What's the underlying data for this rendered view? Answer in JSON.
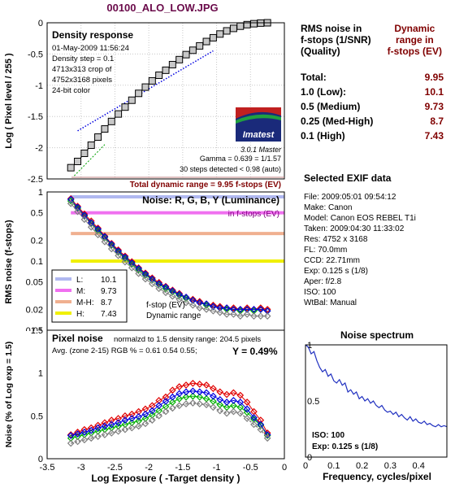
{
  "header": {
    "title": "00100_ALO_LOW.JPG"
  },
  "colors": {
    "lum": "#b0b8f0",
    "med": "#f070f0",
    "medhigh": "#f0b090",
    "high": "#f0f000",
    "red": "#e00000",
    "green": "#00b000",
    "blue": "#0000e0",
    "gray": "#808080",
    "dr_text": "#800000",
    "dr_line": "#c08080",
    "spectrum": "#2030c0"
  },
  "density": {
    "title": "Density response",
    "info": [
      "01-May-2009 11:56:24",
      "Density step = 0.1",
      "4713x313 crop of",
      "4752x3168 pixels",
      "24-bit color"
    ],
    "logo": "Imatest",
    "version": "3.0.1  Master",
    "gamma": "Gamma = 0.639 = 1/1.57",
    "steps": "30 steps detected < 0.98 (auto)",
    "total": "Total dynamic range = 9.95 f-stops (EV)"
  },
  "noise_fstops": {
    "title": "Noise: R, G, B, Y (Luminance)",
    "subtitle": "in f-stops (EV)",
    "legend": [
      {
        "label": "L:",
        "value": "10.1"
      },
      {
        "label": "M:",
        "value": "9.73"
      },
      {
        "label": "M-H:",
        "value": "8.7"
      },
      {
        "label": "H:",
        "value": "7.43"
      }
    ],
    "note1": "f-stop (EV)",
    "note2": "Dynamic range"
  },
  "pixel_noise": {
    "title": "Pixel noise",
    "norm": "normalzd to 1.5 density range: 204.5 pixels",
    "avg": "Avg. (zone 2-15) RGB % = 0.61  0.54  0.55;",
    "y": "Y = 0.49%",
    "xlabel": "Log Exposure ( -Target density )"
  },
  "rms_table": {
    "head_left": [
      "RMS noise in",
      "f-stops (1/SNR)",
      "(Quality)"
    ],
    "head_right": [
      "Dynamic",
      "range in",
      "f-stops (EV)"
    ],
    "rows": [
      {
        "label": "Total:",
        "value": "9.95"
      },
      {
        "label": "1.0   (Low):",
        "value": "10.1"
      },
      {
        "label": "0.5   (Medium)",
        "value": "9.73"
      },
      {
        "label": "0.25 (Med-High)",
        "value": "8.7"
      },
      {
        "label": "0.1   (High)",
        "value": "7.43"
      }
    ]
  },
  "exif": {
    "title": "Selected EXIF data",
    "lines": [
      "File:  2009:05:01 09:54:12",
      "Make:  Canon",
      "Model: Canon EOS REBEL T1i",
      "Taken: 2009:04:30 11:33:02",
      "Res:   4752 x 3168",
      "FL:    70.0mm",
      "CCD:   22.71mm",
      "Exp:   0.125 s  (1/8)",
      "Aper:  f/2.8",
      "ISO:   100",
      "WtBal: Manual"
    ]
  },
  "spectrum": {
    "title": "Noise spectrum",
    "iso": "ISO:   100",
    "exp": "Exp:   0.125 s  (1/8)",
    "xlabel": "Frequency, cycles/pixel"
  },
  "chart_data": [
    {
      "type": "scatter",
      "title": "Density response",
      "ylabel": "Log ( Pixel level / 255 )",
      "xlim": [
        -3.5,
        0
      ],
      "ylim": [
        -2.5,
        0
      ],
      "yticks": [
        0,
        -0.5,
        -1,
        -1.5,
        -2,
        -2.5
      ],
      "series": [
        {
          "x": [
            -3.15,
            -3.05,
            -2.95,
            -2.85,
            -2.75,
            -2.65,
            -2.55,
            -2.45,
            -2.35,
            -2.25,
            -2.15,
            -2.05,
            -1.95,
            -1.85,
            -1.75,
            -1.65,
            -1.55,
            -1.45,
            -1.35,
            -1.25,
            -1.15,
            -1.05,
            -0.95,
            -0.85,
            -0.75,
            -0.65,
            -0.55,
            -0.45,
            -0.35,
            -0.25
          ],
          "y": [
            -2.32,
            -2.22,
            -2.09,
            -1.96,
            -1.83,
            -1.7,
            -1.58,
            -1.46,
            -1.35,
            -1.24,
            -1.13,
            -1.03,
            -0.93,
            -0.84,
            -0.76,
            -0.67,
            -0.59,
            -0.51,
            -0.44,
            -0.37,
            -0.3,
            -0.24,
            -0.18,
            -0.13,
            -0.09,
            -0.055,
            -0.03,
            -0.015,
            -0.005,
            0
          ]
        }
      ]
    },
    {
      "type": "line",
      "title": "Noise: R, G, B, Y (Luminance)",
      "ylabel": "RMS noise (f-stops)",
      "yscale": "log",
      "ylim": [
        0.01,
        1
      ],
      "xlim": [
        -3.5,
        0
      ],
      "yticks": [
        1,
        0.5,
        0.2,
        0.1,
        0.05,
        0.02,
        0.01
      ],
      "thresholds": [
        1,
        0.5,
        0.25,
        0.1
      ],
      "x": [
        -3.15,
        -3.05,
        -2.95,
        -2.85,
        -2.75,
        -2.65,
        -2.55,
        -2.45,
        -2.35,
        -2.25,
        -2.15,
        -2.05,
        -1.95,
        -1.85,
        -1.75,
        -1.65,
        -1.55,
        -1.45,
        -1.35,
        -1.25,
        -1.15,
        -1.05,
        -0.95,
        -0.85,
        -0.75,
        -0.65,
        -0.55,
        -0.45,
        -0.35,
        -0.25
      ],
      "series": [
        {
          "name": "R",
          "values": [
            0.8,
            0.62,
            0.48,
            0.38,
            0.3,
            0.23,
            0.18,
            0.145,
            0.118,
            0.098,
            0.08,
            0.067,
            0.057,
            0.049,
            0.043,
            0.038,
            0.034,
            0.03,
            0.028,
            0.026,
            0.024,
            0.023,
            0.022,
            0.021,
            0.021,
            0.02,
            0.021,
            0.02,
            0.021,
            0.02
          ]
        },
        {
          "name": "G",
          "values": [
            0.74,
            0.58,
            0.45,
            0.35,
            0.28,
            0.22,
            0.17,
            0.136,
            0.11,
            0.091,
            0.075,
            0.063,
            0.054,
            0.046,
            0.04,
            0.036,
            0.032,
            0.029,
            0.027,
            0.025,
            0.023,
            0.022,
            0.021,
            0.02,
            0.02,
            0.019,
            0.02,
            0.019,
            0.02,
            0.019
          ]
        },
        {
          "name": "B",
          "values": [
            0.78,
            0.6,
            0.46,
            0.36,
            0.29,
            0.225,
            0.175,
            0.14,
            0.114,
            0.094,
            0.078,
            0.065,
            0.055,
            0.047,
            0.042,
            0.037,
            0.033,
            0.03,
            0.027,
            0.025,
            0.024,
            0.022,
            0.021,
            0.021,
            0.02,
            0.02,
            0.02,
            0.02,
            0.02,
            0.019
          ]
        },
        {
          "name": "Y",
          "values": [
            0.68,
            0.52,
            0.4,
            0.31,
            0.24,
            0.19,
            0.15,
            0.12,
            0.097,
            0.08,
            0.066,
            0.055,
            0.047,
            0.04,
            0.035,
            0.031,
            0.028,
            0.025,
            0.023,
            0.021,
            0.02,
            0.019,
            0.018,
            0.017,
            0.017,
            0.016,
            0.017,
            0.016,
            0.016,
            0.016
          ]
        }
      ]
    },
    {
      "type": "line",
      "title": "Pixel noise",
      "xlabel": "Log Exposure ( -Target density )",
      "ylabel": "Noise (% of Log exp = 1.5)",
      "xlim": [
        -3.5,
        0
      ],
      "ylim": [
        0,
        1.5
      ],
      "xticks": [
        -3.5,
        -3,
        -2.5,
        -2,
        -1.5,
        -1,
        -0.5,
        0
      ],
      "yticks": [
        0,
        0.5,
        1,
        1.5
      ],
      "x": [
        -3.15,
        -3.05,
        -2.95,
        -2.85,
        -2.75,
        -2.65,
        -2.55,
        -2.45,
        -2.35,
        -2.25,
        -2.15,
        -2.05,
        -1.95,
        -1.85,
        -1.75,
        -1.65,
        -1.55,
        -1.45,
        -1.35,
        -1.25,
        -1.15,
        -1.05,
        -0.95,
        -0.85,
        -0.75,
        -0.65,
        -0.55,
        -0.45,
        -0.35,
        -0.25
      ],
      "series": [
        {
          "name": "R",
          "values": [
            0.28,
            0.31,
            0.34,
            0.36,
            0.39,
            0.42,
            0.45,
            0.47,
            0.5,
            0.52,
            0.55,
            0.58,
            0.62,
            0.68,
            0.72,
            0.8,
            0.84,
            0.86,
            0.88,
            0.87,
            0.86,
            0.82,
            0.78,
            0.75,
            0.77,
            0.74,
            0.66,
            0.55,
            0.45,
            0.3
          ]
        },
        {
          "name": "G",
          "values": [
            0.24,
            0.26,
            0.28,
            0.3,
            0.32,
            0.34,
            0.36,
            0.38,
            0.4,
            0.42,
            0.44,
            0.47,
            0.51,
            0.56,
            0.61,
            0.66,
            0.7,
            0.72,
            0.73,
            0.72,
            0.7,
            0.67,
            0.63,
            0.6,
            0.62,
            0.6,
            0.54,
            0.46,
            0.39,
            0.27
          ]
        },
        {
          "name": "B",
          "values": [
            0.27,
            0.29,
            0.31,
            0.33,
            0.36,
            0.38,
            0.4,
            0.42,
            0.45,
            0.47,
            0.49,
            0.52,
            0.56,
            0.62,
            0.67,
            0.72,
            0.76,
            0.78,
            0.79,
            0.78,
            0.77,
            0.73,
            0.69,
            0.66,
            0.68,
            0.66,
            0.58,
            0.48,
            0.4,
            0.28
          ]
        },
        {
          "name": "Y",
          "values": [
            0.18,
            0.2,
            0.22,
            0.24,
            0.26,
            0.28,
            0.3,
            0.32,
            0.34,
            0.36,
            0.38,
            0.41,
            0.45,
            0.5,
            0.55,
            0.59,
            0.62,
            0.64,
            0.65,
            0.64,
            0.63,
            0.6,
            0.56,
            0.53,
            0.55,
            0.53,
            0.47,
            0.4,
            0.34,
            0.24
          ]
        }
      ]
    },
    {
      "type": "line",
      "title": "Noise spectrum",
      "xlabel": "Frequency, cycles/pixel",
      "xlim": [
        0,
        0.5
      ],
      "ylim": [
        0,
        1
      ],
      "xticks": [
        0,
        0.1,
        0.2,
        0.3,
        0.4
      ],
      "yticks": [
        1,
        0.5,
        0
      ],
      "x": [
        0,
        0.01,
        0.02,
        0.03,
        0.04,
        0.05,
        0.06,
        0.07,
        0.08,
        0.09,
        0.1,
        0.11,
        0.12,
        0.13,
        0.14,
        0.15,
        0.16,
        0.17,
        0.18,
        0.19,
        0.2,
        0.21,
        0.22,
        0.23,
        0.24,
        0.25,
        0.26,
        0.27,
        0.28,
        0.29,
        0.3,
        0.31,
        0.32,
        0.33,
        0.34,
        0.35,
        0.36,
        0.37,
        0.38,
        0.39,
        0.4,
        0.41,
        0.42,
        0.43,
        0.44,
        0.45,
        0.46,
        0.47,
        0.48,
        0.49,
        0.5
      ],
      "values": [
        1.0,
        0.98,
        0.92,
        0.94,
        0.86,
        0.8,
        0.76,
        0.78,
        0.72,
        0.74,
        0.68,
        0.66,
        0.69,
        0.64,
        0.66,
        0.58,
        0.6,
        0.56,
        0.58,
        0.52,
        0.54,
        0.5,
        0.52,
        0.48,
        0.5,
        0.46,
        0.44,
        0.46,
        0.42,
        0.4,
        0.41,
        0.38,
        0.4,
        0.36,
        0.38,
        0.35,
        0.33,
        0.36,
        0.32,
        0.34,
        0.31,
        0.3,
        0.32,
        0.29,
        0.3,
        0.28,
        0.27,
        0.29,
        0.27,
        0.28,
        0.27
      ]
    }
  ]
}
